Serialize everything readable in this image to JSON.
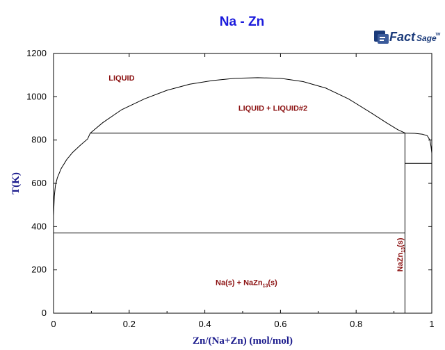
{
  "chart_data": {
    "type": "line",
    "title": "Na - Zn",
    "xlabel": "Zn/(Na+Zn) (mol/mol)",
    "ylabel": "T(K)",
    "xlim": [
      0,
      1
    ],
    "ylim": [
      0,
      1200
    ],
    "xticks": [
      "0",
      "0.2",
      "0.4",
      "0.6",
      "0.8",
      "1"
    ],
    "yticks": [
      "0",
      "200",
      "400",
      "600",
      "800",
      "1000",
      "1200"
    ],
    "grid": false,
    "logo": {
      "word1": "Fact",
      "word2": "Sage",
      "mark": "TM"
    },
    "regions": [
      {
        "label": "LIQUID",
        "x": 0.18,
        "y": 1075
      },
      {
        "label": "LIQUID + LIQUID#2",
        "x": 0.58,
        "y": 935
      }
    ],
    "compound_region": {
      "main": "Na(s) + NaZn",
      "sub": "13",
      "tail": "(s)",
      "x": 0.51,
      "y": 130
    },
    "compound_phase": {
      "main": "NaZn",
      "sub": "13",
      "tail": "(s)",
      "x": 0.925,
      "y": 270
    },
    "series": [
      {
        "values": [
          [
            0.0,
            450
          ],
          [
            0.002,
            540
          ],
          [
            0.005,
            590
          ],
          [
            0.01,
            625
          ],
          [
            0.02,
            668
          ],
          [
            0.035,
            710
          ],
          [
            0.05,
            742
          ],
          [
            0.07,
            775
          ],
          [
            0.09,
            805
          ],
          [
            0.097,
            832
          ]
        ]
      },
      {
        "values": [
          [
            0.097,
            832
          ],
          [
            0.13,
            880
          ],
          [
            0.18,
            940
          ],
          [
            0.24,
            990
          ],
          [
            0.3,
            1030
          ],
          [
            0.36,
            1058
          ],
          [
            0.42,
            1075
          ],
          [
            0.48,
            1085
          ],
          [
            0.54,
            1088
          ],
          [
            0.6,
            1085
          ],
          [
            0.66,
            1070
          ],
          [
            0.72,
            1040
          ],
          [
            0.78,
            990
          ],
          [
            0.84,
            925
          ],
          [
            0.88,
            880
          ],
          [
            0.91,
            848
          ],
          [
            0.93,
            832
          ]
        ]
      },
      {
        "values": [
          [
            0.93,
            832
          ],
          [
            0.955,
            831
          ],
          [
            0.975,
            827
          ],
          [
            0.988,
            820
          ],
          [
            0.995,
            800
          ],
          [
            0.998,
            770
          ],
          [
            1.0,
            740
          ],
          [
            1.0,
            692
          ]
        ]
      },
      {
        "values": [
          [
            0.097,
            832
          ],
          [
            0.929,
            832
          ]
        ]
      },
      {
        "values": [
          [
            0.0,
            371
          ],
          [
            0.929,
            371
          ]
        ]
      },
      {
        "values": [
          [
            0.929,
            0
          ],
          [
            0.929,
            832
          ]
        ]
      },
      {
        "values": [
          [
            0.929,
            692
          ],
          [
            1.0,
            692
          ]
        ]
      }
    ]
  }
}
